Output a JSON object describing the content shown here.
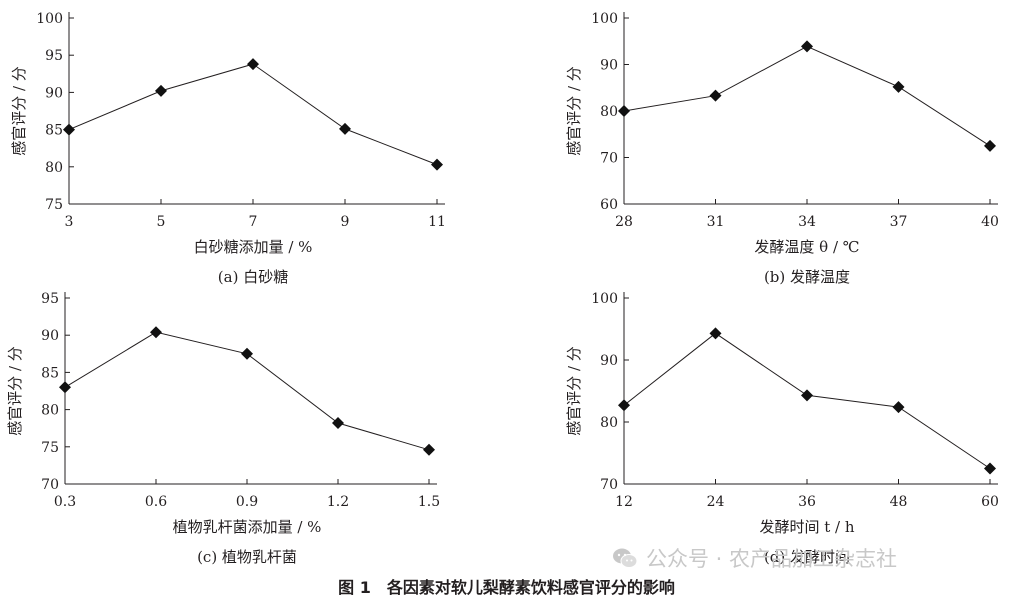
{
  "figure_caption": "图 1　各因素对软儿梨酵素饮料感官评分的影响",
  "watermark": "公众号 · 农产品加工杂志社",
  "colors": {
    "ink": "#231f20",
    "marker": "#111111",
    "watermark": "#c8c8c8"
  },
  "chart_data": [
    {
      "type": "line",
      "subcaption": "(a)  白砂糖",
      "xlabel": "白砂糖添加量 / %",
      "ylabel": "感官评分 / 分",
      "categories": [
        "3",
        "5",
        "7",
        "9",
        "11"
      ],
      "x": [
        3,
        5,
        7,
        9,
        11
      ],
      "values": [
        85.0,
        90.2,
        93.8,
        85.1,
        80.3
      ],
      "xlim": [
        3,
        11
      ],
      "ylim": [
        75,
        100
      ],
      "yticks": [
        75,
        80,
        85,
        90,
        95,
        100
      ],
      "marker": "diamond",
      "grid": false
    },
    {
      "type": "line",
      "subcaption": "(b)  发酵温度",
      "xlabel": "发酵温度 θ / ℃",
      "ylabel": "感官评分 / 分",
      "categories": [
        "28",
        "31",
        "34",
        "37",
        "40"
      ],
      "x": [
        28,
        31,
        34,
        37,
        40
      ],
      "values": [
        80.0,
        83.3,
        93.9,
        85.2,
        72.5
      ],
      "xlim": [
        28,
        40
      ],
      "ylim": [
        60,
        100
      ],
      "yticks": [
        60,
        70,
        80,
        90,
        100
      ],
      "marker": "diamond",
      "grid": false
    },
    {
      "type": "line",
      "subcaption": "(c)  植物乳杆菌",
      "xlabel": "植物乳杆菌添加量 / %",
      "ylabel": "感官评分 / 分",
      "categories": [
        "0.3",
        "0.6",
        "0.9",
        "1.2",
        "1.5"
      ],
      "x": [
        0.3,
        0.6,
        0.9,
        1.2,
        1.5
      ],
      "values": [
        83.0,
        90.4,
        87.5,
        78.2,
        74.6
      ],
      "xlim": [
        0.3,
        1.5
      ],
      "ylim": [
        70,
        95
      ],
      "yticks": [
        70,
        75,
        80,
        85,
        90,
        95
      ],
      "marker": "diamond",
      "grid": false
    },
    {
      "type": "line",
      "subcaption": "(d)  发酵时间",
      "xlabel": "发酵时间 t / h",
      "ylabel": "感官评分 / 分",
      "categories": [
        "12",
        "24",
        "36",
        "48",
        "60"
      ],
      "x": [
        12,
        24,
        36,
        48,
        60
      ],
      "values": [
        82.7,
        94.3,
        84.3,
        82.4,
        72.5
      ],
      "xlim": [
        12,
        60
      ],
      "ylim": [
        70,
        100
      ],
      "yticks": [
        70,
        80,
        90,
        100
      ],
      "marker": "diamond",
      "grid": false
    }
  ]
}
